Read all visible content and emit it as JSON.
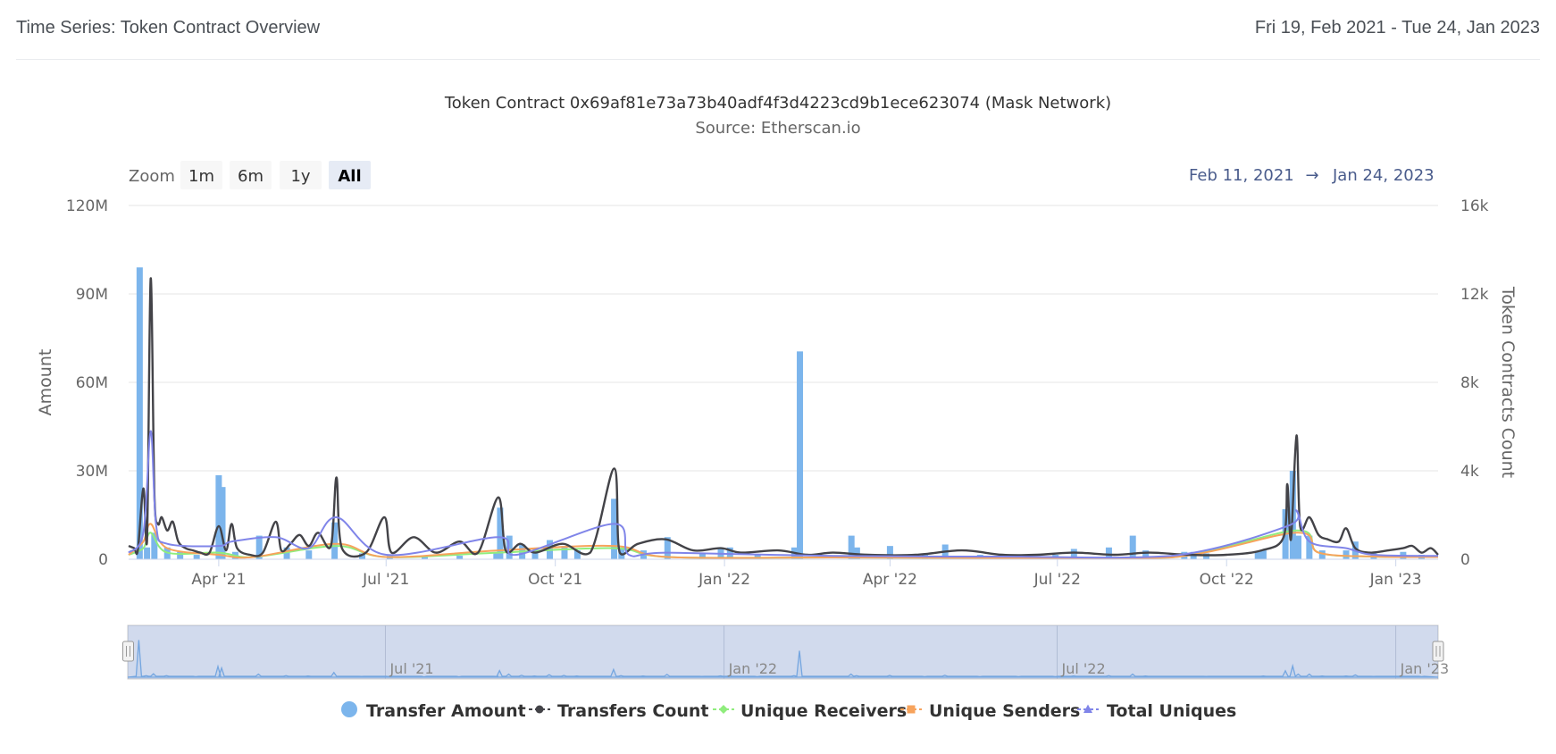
{
  "header": {
    "title": "Time Series: Token Contract Overview",
    "date_range": "Fri 19, Feb 2021 - Tue 24, Jan 2023"
  },
  "range_selector": {
    "zoom_label": "Zoom",
    "buttons": [
      "1m",
      "6m",
      "1y",
      "All"
    ],
    "active": "All",
    "from_date": "Feb 11, 2021",
    "arrow": "→",
    "to_date": "Jan 24, 2023"
  },
  "navigator": {
    "labels": [
      "Jul '21",
      "Jan '22",
      "Jul '22",
      "Jan '23"
    ]
  },
  "chart_data": {
    "type": "bar",
    "title": "Token Contract 0x69af81e73a73b40adf4f3d4223cd9b1ece623074 (Mask Network)",
    "subtitle": "Source: Etherscan.io",
    "x_axis": {
      "type": "datetime",
      "range": [
        "2021-02-11",
        "2023-01-24"
      ],
      "tick_labels": [
        "Apr '21",
        "Jul '21",
        "Oct '21",
        "Jan '22",
        "Apr '22",
        "Jul '22",
        "Oct '22",
        "Jan '23"
      ],
      "tick_dates": [
        "2021-04-01",
        "2021-07-01",
        "2021-10-01",
        "2022-01-01",
        "2022-04-01",
        "2022-07-01",
        "2022-10-01",
        "2023-01-01"
      ]
    },
    "y_axis_left": {
      "label": "Amount",
      "range": [
        0,
        120000000
      ],
      "tick_labels": [
        "0",
        "30M",
        "60M",
        "90M",
        "120M"
      ],
      "tick_values": [
        0,
        30000000,
        60000000,
        90000000,
        120000000
      ]
    },
    "y_axis_right": {
      "label": "Token Contracts Count",
      "range": [
        0,
        16000
      ],
      "tick_labels": [
        "0",
        "4k",
        "8k",
        "12k",
        "16k"
      ],
      "tick_values": [
        0,
        4000,
        8000,
        12000,
        16000
      ]
    },
    "grid": true,
    "legend_position": "bottom-center",
    "series": [
      {
        "name": "Transfer Amount",
        "type": "column",
        "axis": "left",
        "color": "#7cb5ec",
        "points": [
          [
            "2021-02-17",
            99000000
          ],
          [
            "2021-02-21",
            4000000
          ],
          [
            "2021-02-25",
            9000000
          ],
          [
            "2021-03-04",
            4000000
          ],
          [
            "2021-03-11",
            2500000
          ],
          [
            "2021-03-20",
            1500000
          ],
          [
            "2021-04-01",
            28500000
          ],
          [
            "2021-04-03",
            24500000
          ],
          [
            "2021-04-10",
            2500000
          ],
          [
            "2021-04-23",
            8000000
          ],
          [
            "2021-05-08",
            4000000
          ],
          [
            "2021-05-20",
            3000000
          ],
          [
            "2021-06-03",
            12500000
          ],
          [
            "2021-06-18",
            2000000
          ],
          [
            "2021-07-03",
            1500000
          ],
          [
            "2021-07-22",
            1000000
          ],
          [
            "2021-08-10",
            1200000
          ],
          [
            "2021-08-30",
            2000000
          ],
          [
            "2021-09-01",
            17500000
          ],
          [
            "2021-09-06",
            8000000
          ],
          [
            "2021-09-13",
            5000000
          ],
          [
            "2021-09-20",
            3000000
          ],
          [
            "2021-09-28",
            6500000
          ],
          [
            "2021-10-06",
            4500000
          ],
          [
            "2021-10-13",
            3000000
          ],
          [
            "2021-11-02",
            20500000
          ],
          [
            "2021-11-06",
            4000000
          ],
          [
            "2021-11-18",
            3000000
          ],
          [
            "2021-12-01",
            7500000
          ],
          [
            "2021-12-20",
            2000000
          ],
          [
            "2021-12-30",
            3500000
          ],
          [
            "2022-01-04",
            4000000
          ],
          [
            "2022-01-19",
            1500000
          ],
          [
            "2022-02-08",
            4000000
          ],
          [
            "2022-02-11",
            70500000
          ],
          [
            "2022-03-11",
            8000000
          ],
          [
            "2022-03-14",
            4000000
          ],
          [
            "2022-04-01",
            4500000
          ],
          [
            "2022-04-20",
            1500000
          ],
          [
            "2022-05-01",
            5000000
          ],
          [
            "2022-05-20",
            1500000
          ],
          [
            "2022-06-10",
            1500000
          ],
          [
            "2022-06-30",
            1500000
          ],
          [
            "2022-07-10",
            3500000
          ],
          [
            "2022-07-29",
            4000000
          ],
          [
            "2022-08-11",
            8000000
          ],
          [
            "2022-08-18",
            3000000
          ],
          [
            "2022-09-08",
            2500000
          ],
          [
            "2022-09-13",
            2500000
          ],
          [
            "2022-09-20",
            2000000
          ],
          [
            "2022-10-18",
            2500000
          ],
          [
            "2022-10-21",
            3000000
          ],
          [
            "2022-11-02",
            17000000
          ],
          [
            "2022-11-06",
            30000000
          ],
          [
            "2022-11-09",
            8000000
          ],
          [
            "2022-11-15",
            8000000
          ],
          [
            "2022-11-22",
            3000000
          ],
          [
            "2022-12-05",
            3000000
          ],
          [
            "2022-12-10",
            6000000
          ],
          [
            "2022-12-20",
            2000000
          ],
          [
            "2023-01-05",
            2500000
          ],
          [
            "2023-01-15",
            1500000
          ]
        ]
      },
      {
        "name": "Transfers Count",
        "type": "spline",
        "axis": "right",
        "color": "#434348",
        "marker": "circle",
        "points": [
          [
            "2021-02-11",
            600
          ],
          [
            "2021-02-14",
            500
          ],
          [
            "2021-02-16",
            400
          ],
          [
            "2021-02-19",
            3200
          ],
          [
            "2021-02-21",
            800
          ],
          [
            "2021-02-23",
            12700
          ],
          [
            "2021-02-25",
            3000
          ],
          [
            "2021-02-27",
            1600
          ],
          [
            "2021-03-01",
            1900
          ],
          [
            "2021-03-04",
            1300
          ],
          [
            "2021-03-07",
            1700
          ],
          [
            "2021-03-10",
            800
          ],
          [
            "2021-03-14",
            500
          ],
          [
            "2021-03-18",
            400
          ],
          [
            "2021-03-22",
            300
          ],
          [
            "2021-03-27",
            300
          ],
          [
            "2021-04-01",
            1500
          ],
          [
            "2021-04-05",
            400
          ],
          [
            "2021-04-08",
            1600
          ],
          [
            "2021-04-11",
            500
          ],
          [
            "2021-04-18",
            200
          ],
          [
            "2021-04-25",
            300
          ],
          [
            "2021-05-02",
            1700
          ],
          [
            "2021-05-05",
            400
          ],
          [
            "2021-05-10",
            700
          ],
          [
            "2021-05-15",
            1100
          ],
          [
            "2021-05-20",
            600
          ],
          [
            "2021-05-25",
            1200
          ],
          [
            "2021-06-01",
            600
          ],
          [
            "2021-06-04",
            3700
          ],
          [
            "2021-06-07",
            500
          ],
          [
            "2021-06-20",
            300
          ],
          [
            "2021-06-30",
            1900
          ],
          [
            "2021-07-04",
            300
          ],
          [
            "2021-07-16",
            1000
          ],
          [
            "2021-07-28",
            300
          ],
          [
            "2021-08-10",
            800
          ],
          [
            "2021-08-20",
            300
          ],
          [
            "2021-08-31",
            2800
          ],
          [
            "2021-09-04",
            400
          ],
          [
            "2021-09-12",
            700
          ],
          [
            "2021-09-20",
            300
          ],
          [
            "2021-10-05",
            700
          ],
          [
            "2021-10-20",
            300
          ],
          [
            "2021-11-02",
            4100
          ],
          [
            "2021-11-05",
            300
          ],
          [
            "2021-11-15",
            700
          ],
          [
            "2021-11-30",
            900
          ],
          [
            "2021-12-15",
            400
          ],
          [
            "2021-12-30",
            500
          ],
          [
            "2022-01-10",
            300
          ],
          [
            "2022-01-30",
            400
          ],
          [
            "2022-02-15",
            200
          ],
          [
            "2022-03-01",
            300
          ],
          [
            "2022-03-20",
            200
          ],
          [
            "2022-04-15",
            200
          ],
          [
            "2022-05-10",
            400
          ],
          [
            "2022-06-01",
            200
          ],
          [
            "2022-06-20",
            200
          ],
          [
            "2022-07-10",
            300
          ],
          [
            "2022-08-01",
            200
          ],
          [
            "2022-08-20",
            300
          ],
          [
            "2022-09-10",
            200
          ],
          [
            "2022-10-01",
            200
          ],
          [
            "2022-10-20",
            400
          ],
          [
            "2022-11-01",
            1000
          ],
          [
            "2022-11-03",
            3400
          ],
          [
            "2022-11-05",
            900
          ],
          [
            "2022-11-08",
            5600
          ],
          [
            "2022-11-10",
            1500
          ],
          [
            "2022-11-15",
            1900
          ],
          [
            "2022-11-20",
            1100
          ],
          [
            "2022-11-25",
            900
          ],
          [
            "2022-12-01",
            800
          ],
          [
            "2022-12-05",
            1400
          ],
          [
            "2022-12-10",
            500
          ],
          [
            "2022-12-18",
            300
          ],
          [
            "2022-12-28",
            400
          ],
          [
            "2023-01-05",
            500
          ],
          [
            "2023-01-10",
            600
          ],
          [
            "2023-01-15",
            300
          ],
          [
            "2023-01-20",
            500
          ],
          [
            "2023-01-24",
            200
          ]
        ]
      },
      {
        "name": "Unique Receivers",
        "type": "spline",
        "axis": "right",
        "color": "#90ed7d",
        "marker": "diamond",
        "points": [
          [
            "2021-02-11",
            200
          ],
          [
            "2021-02-19",
            500
          ],
          [
            "2021-02-23",
            1200
          ],
          [
            "2021-03-04",
            300
          ],
          [
            "2021-04-01",
            300
          ],
          [
            "2021-04-20",
            100
          ],
          [
            "2021-06-04",
            600
          ],
          [
            "2021-07-01",
            100
          ],
          [
            "2021-08-31",
            300
          ],
          [
            "2021-11-02",
            500
          ],
          [
            "2021-12-01",
            100
          ],
          [
            "2022-03-01",
            80
          ],
          [
            "2022-06-01",
            60
          ],
          [
            "2022-09-01",
            80
          ],
          [
            "2022-11-08",
            1300
          ],
          [
            "2022-11-20",
            300
          ],
          [
            "2022-12-20",
            120
          ],
          [
            "2023-01-24",
            100
          ]
        ]
      },
      {
        "name": "Unique Senders",
        "type": "spline",
        "axis": "right",
        "color": "#f7a35c",
        "marker": "square",
        "points": [
          [
            "2021-02-11",
            200
          ],
          [
            "2021-02-19",
            800
          ],
          [
            "2021-02-23",
            1600
          ],
          [
            "2021-03-04",
            500
          ],
          [
            "2021-04-01",
            200
          ],
          [
            "2021-04-20",
            100
          ],
          [
            "2021-06-04",
            700
          ],
          [
            "2021-07-01",
            100
          ],
          [
            "2021-08-31",
            400
          ],
          [
            "2021-11-02",
            600
          ],
          [
            "2021-12-01",
            100
          ],
          [
            "2022-03-01",
            80
          ],
          [
            "2022-06-01",
            60
          ],
          [
            "2022-09-01",
            80
          ],
          [
            "2022-11-08",
            1200
          ],
          [
            "2022-11-20",
            300
          ],
          [
            "2022-12-20",
            120
          ],
          [
            "2023-01-24",
            100
          ]
        ]
      },
      {
        "name": "Total Uniques",
        "type": "spline",
        "axis": "right",
        "color": "#8085e9",
        "marker": "triangle",
        "points": [
          [
            "2021-02-11",
            300
          ],
          [
            "2021-02-19",
            1200
          ],
          [
            "2021-02-23",
            5800
          ],
          [
            "2021-02-26",
            1500
          ],
          [
            "2021-03-04",
            700
          ],
          [
            "2021-04-01",
            600
          ],
          [
            "2021-04-08",
            800
          ],
          [
            "2021-05-02",
            1000
          ],
          [
            "2021-05-20",
            500
          ],
          [
            "2021-06-04",
            1900
          ],
          [
            "2021-07-01",
            200
          ],
          [
            "2021-08-31",
            1000
          ],
          [
            "2021-09-10",
            200
          ],
          [
            "2021-11-02",
            1600
          ],
          [
            "2021-11-10",
            200
          ],
          [
            "2021-12-01",
            300
          ],
          [
            "2022-03-01",
            150
          ],
          [
            "2022-06-01",
            120
          ],
          [
            "2022-09-01",
            150
          ],
          [
            "2022-11-03",
            1500
          ],
          [
            "2022-11-08",
            2200
          ],
          [
            "2022-11-15",
            800
          ],
          [
            "2022-12-05",
            500
          ],
          [
            "2022-12-20",
            200
          ],
          [
            "2023-01-24",
            150
          ]
        ]
      }
    ]
  }
}
